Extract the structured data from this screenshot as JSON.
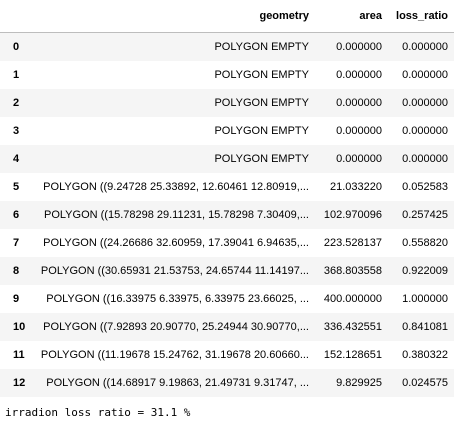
{
  "table": {
    "columns": [
      "",
      "geometry",
      "area",
      "loss_ratio"
    ],
    "rows": [
      {
        "index": "0",
        "geometry": "POLYGON EMPTY",
        "area": "0.000000",
        "loss_ratio": "0.000000"
      },
      {
        "index": "1",
        "geometry": "POLYGON EMPTY",
        "area": "0.000000",
        "loss_ratio": "0.000000"
      },
      {
        "index": "2",
        "geometry": "POLYGON EMPTY",
        "area": "0.000000",
        "loss_ratio": "0.000000"
      },
      {
        "index": "3",
        "geometry": "POLYGON EMPTY",
        "area": "0.000000",
        "loss_ratio": "0.000000"
      },
      {
        "index": "4",
        "geometry": "POLYGON EMPTY",
        "area": "0.000000",
        "loss_ratio": "0.000000"
      },
      {
        "index": "5",
        "geometry": "POLYGON ((9.24728 25.33892, 12.60461 12.80919,...",
        "area": "21.033220",
        "loss_ratio": "0.052583"
      },
      {
        "index": "6",
        "geometry": "POLYGON ((15.78298 29.11231, 15.78298 7.30409,...",
        "area": "102.970096",
        "loss_ratio": "0.257425"
      },
      {
        "index": "7",
        "geometry": "POLYGON ((24.26686 32.60959, 17.39041 6.94635,...",
        "area": "223.528137",
        "loss_ratio": "0.558820"
      },
      {
        "index": "8",
        "geometry": "POLYGON ((30.65931 21.53753, 24.65744 11.14197...",
        "area": "368.803558",
        "loss_ratio": "0.922009"
      },
      {
        "index": "9",
        "geometry": "POLYGON ((16.33975 6.33975, 6.33975 23.66025, ...",
        "area": "400.000000",
        "loss_ratio": "1.000000"
      },
      {
        "index": "10",
        "geometry": "POLYGON ((7.92893 20.90770, 25.24944 30.90770,...",
        "area": "336.432551",
        "loss_ratio": "0.841081"
      },
      {
        "index": "11",
        "geometry": "POLYGON ((11.19678 15.24762, 31.19678 20.60660...",
        "area": "152.128651",
        "loss_ratio": "0.380322"
      },
      {
        "index": "12",
        "geometry": "POLYGON ((14.68917 9.19863, 21.49731 9.31747, ...",
        "area": "9.829925",
        "loss_ratio": "0.024575"
      }
    ]
  },
  "output": {
    "text": "irradion loss ratio = 31.1 %"
  }
}
